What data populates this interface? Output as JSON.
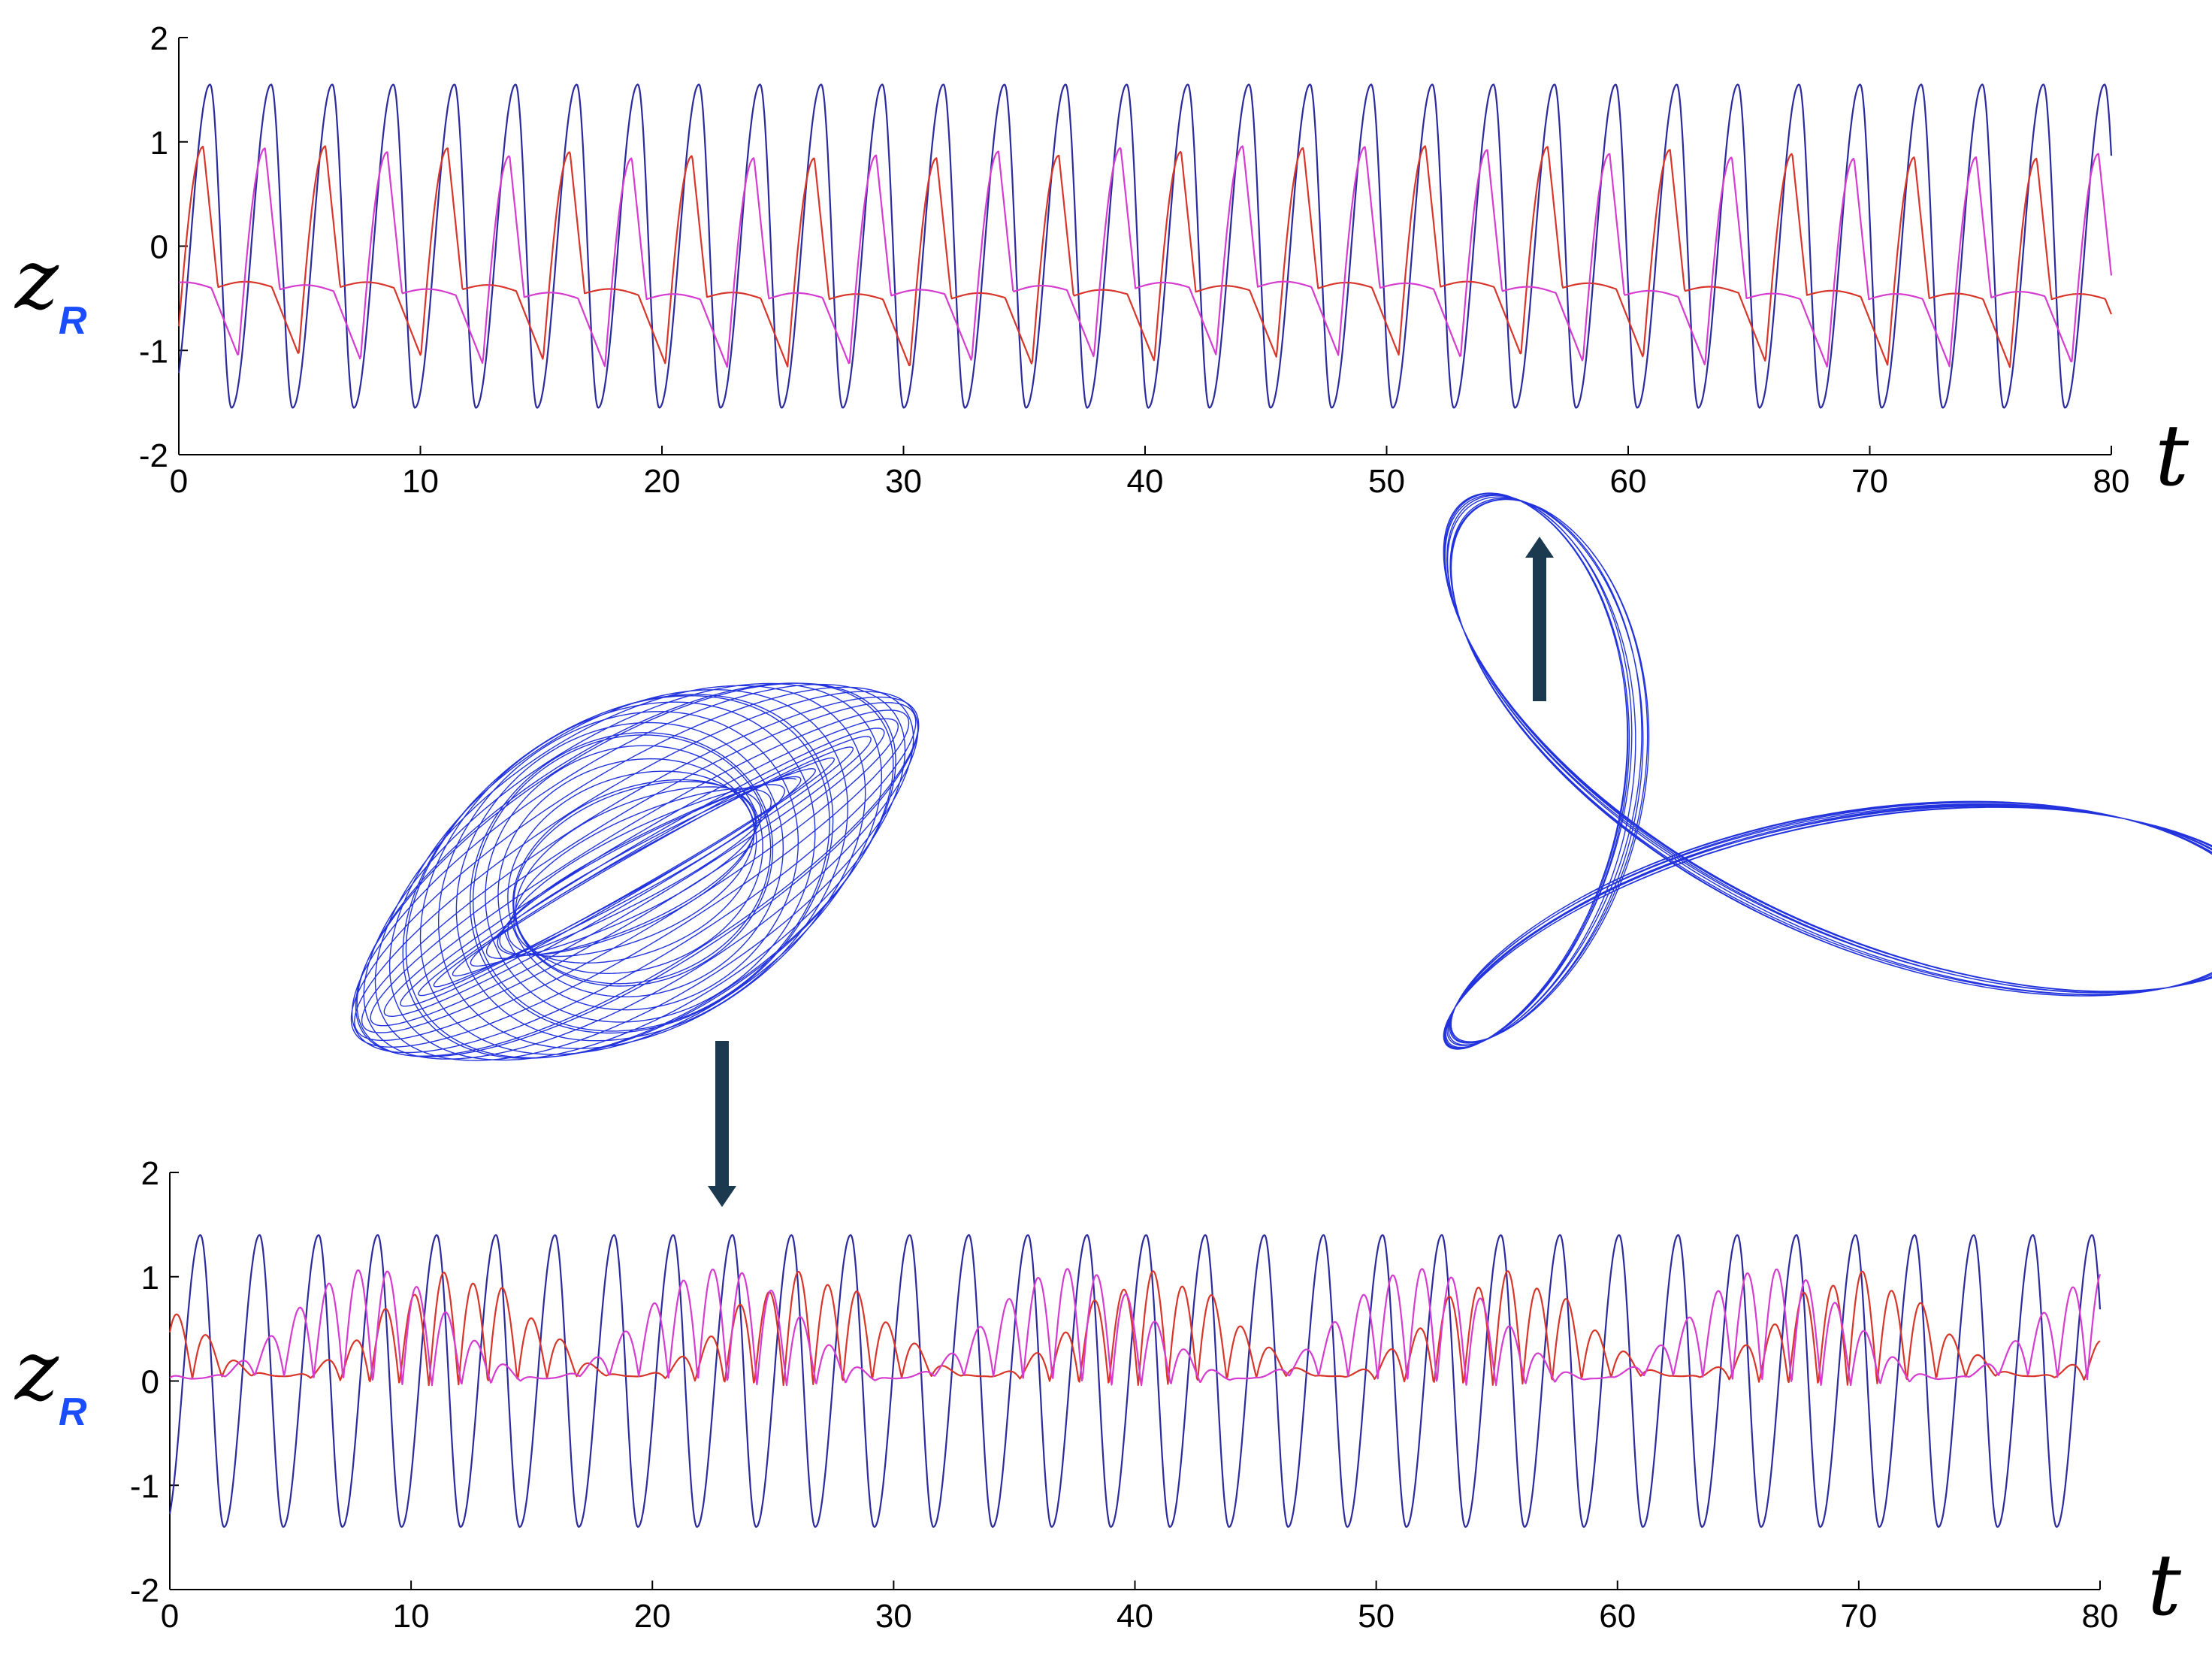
{
  "colors": {
    "blue": "#2b2b9e",
    "red": "#d8362b",
    "magenta": "#d63cd0",
    "attractor": "#2233dd",
    "sub": "#1a4dff",
    "arrow": "#1c3a4f"
  },
  "chart_data": [
    {
      "type": "line",
      "ylabel": "z",
      "ylabel_sub": "R",
      "xlabel": "t",
      "xlim": [
        0,
        80
      ],
      "ylim": [
        -2,
        2
      ],
      "xticks": [
        "0",
        "10",
        "20",
        "30",
        "40",
        "50",
        "60",
        "70",
        "80"
      ],
      "yticks": [
        "2",
        "1",
        "0",
        "-1",
        "-2"
      ],
      "series": [
        {
          "color": "blue",
          "shape": "triangle-like",
          "period": 2.53,
          "amplitude": 1.55,
          "offset": 0.0,
          "phase": 0.35,
          "skew": 0.65
        },
        {
          "color": "red",
          "shape": "sawtooth-rise",
          "period": 5.06,
          "peak": 0.9,
          "trough": -1.1,
          "flat": -0.45,
          "phase": 0.1
        },
        {
          "color": "magenta",
          "shape": "sawtooth-rise",
          "period": 5.06,
          "peak": 0.9,
          "trough": -1.1,
          "flat": -0.45,
          "phase": 2.6
        }
      ]
    },
    {
      "type": "line",
      "ylabel": "z",
      "ylabel_sub": "R",
      "xlabel": "t",
      "xlim": [
        0,
        80
      ],
      "ylim": [
        -2,
        2
      ],
      "xticks": [
        "0",
        "10",
        "20",
        "30",
        "40",
        "50",
        "60",
        "70",
        "80"
      ],
      "yticks": [
        "2",
        "1",
        "0",
        "-1",
        "-2"
      ],
      "series": [
        {
          "color": "blue",
          "shape": "triangle-like",
          "period": 2.45,
          "amplitude": 1.4,
          "offset": 0.0,
          "phase": 0.2,
          "skew": 0.6
        },
        {
          "color": "red",
          "shape": "modulated",
          "period": 2.45,
          "peak": 1.0,
          "trough": -1.1,
          "modulation_period": 14.5,
          "phase": 0.9
        },
        {
          "color": "magenta",
          "shape": "modulated",
          "period": 2.45,
          "peak": 1.1,
          "trough": -1.1,
          "modulation_period": 14.5,
          "phase": 2.0
        }
      ]
    }
  ],
  "attractors": [
    {
      "name": "quasi-periodic torus",
      "color": "attractor",
      "turns": 34
    },
    {
      "name": "periodic orbit",
      "color": "attractor",
      "turns": 9
    }
  ],
  "arrows": [
    {
      "direction": "up"
    },
    {
      "direction": "down"
    }
  ]
}
